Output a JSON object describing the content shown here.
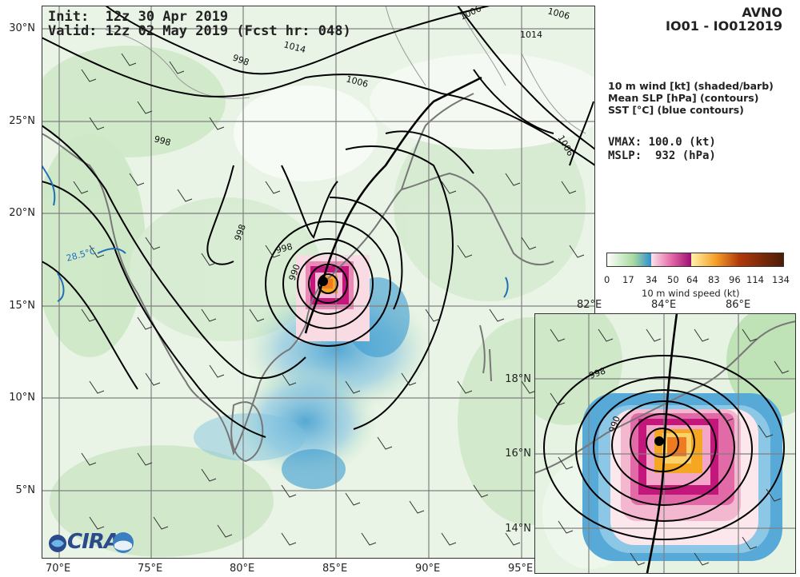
{
  "header": {
    "init": "Init:  12z 30 Apr 2019",
    "valid": "Valid: 12z 02 May 2019 (Fcst hr: 048)",
    "model": "AVNO",
    "storm_id": "IO01 - IO012019"
  },
  "legend_text": {
    "line1": "10 m wind [kt] (shaded/barb)",
    "line2": "Mean SLP [hPa] (contours)",
    "line3": "SST [°C] (blue contours)"
  },
  "stats": {
    "vmax": "VMAX: 100.0 (kt)",
    "mslp": "MSLP:  932 (hPa)"
  },
  "colorbar": {
    "ticks": [
      "0",
      "17",
      "34",
      "50",
      "64",
      "83",
      "96",
      "114",
      "134"
    ],
    "label": "10 m wind speed (kt)"
  },
  "axes": {
    "lat_labels": [
      "30°N",
      "25°N",
      "20°N",
      "15°N",
      "10°N",
      "5°N"
    ],
    "lon_labels": [
      "70°E",
      "75°E",
      "80°E",
      "85°E",
      "90°E",
      "95°E"
    ],
    "inset_lat_labels": [
      "18°N",
      "16°N",
      "14°N"
    ],
    "inset_lon_labels": [
      "82°E",
      "84°E",
      "86°E"
    ]
  },
  "contour_labels": {
    "c1006a": "1006",
    "c1006b": "1006",
    "c1006c": "1006",
    "c1006d": "1006",
    "c1014a": "1014",
    "c1014b": "1014",
    "c998a": "998",
    "c998b": "998",
    "c998c": "998",
    "c998d": "998",
    "c990": "990",
    "sst": "28.5°C",
    "inset998": "998",
    "inset990": "990"
  },
  "logo": {
    "text": "CIRA"
  },
  "colors": {
    "land_light": "#e8f3e4",
    "wind_low": "#bfe3b8",
    "wind_mid": "#3b9bd1",
    "wind_ts": "#f7d7e0",
    "wind_high": "#c4177c",
    "wind_max": "#f5a623",
    "coast": "#777777",
    "grid": "#808080",
    "contour": "#000000",
    "sst": "#1f6fb8"
  }
}
